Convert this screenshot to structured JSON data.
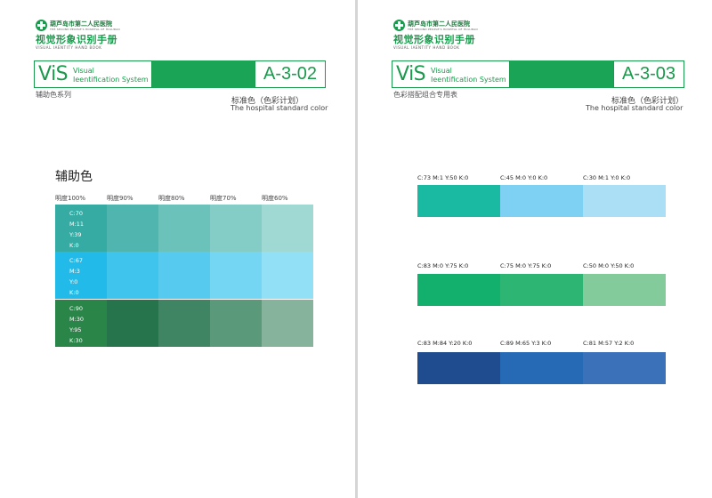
{
  "header": {
    "hospital_cn": "葫芦岛市第二人民医院",
    "hospital_en": "THE SECOND PEOPLE'S HOSPITAL OF HULUDAO",
    "manual_cn": "视觉形象识别手册",
    "manual_en": "VISUAL IAENTITY HAND BOOK",
    "vis_logo": "ViS",
    "vis_line1": "Visual",
    "vis_line2": "Ieentification System",
    "standard_cn": "标准色（色彩计划）",
    "standard_en": "The hospital standard color"
  },
  "left_page": {
    "code": "A-3-02",
    "section": "辅助色系列",
    "title": "辅助色",
    "brightness_labels": [
      "明度100%",
      "明度90%",
      "明度80%",
      "明度70%",
      "明度60%"
    ],
    "rows": [
      {
        "cmyk": [
          "C:70",
          "M:11",
          "Y:39",
          "K:0"
        ],
        "colors": [
          "#35aba3",
          "#4fb5ae",
          "#6ac2bb",
          "#84ccc6",
          "#a0d8d3"
        ]
      },
      {
        "cmyk": [
          "C:67",
          "M:3",
          "Y:0",
          "K:0"
        ],
        "colors": [
          "#22bbe9",
          "#3ec4ed",
          "#57cbef",
          "#74d6f2",
          "#92e0f5"
        ]
      },
      {
        "cmyk": [
          "C:90",
          "M:30",
          "Y:95",
          "K:30"
        ],
        "colors": [
          "#2a8548",
          "#26744c",
          "#3f8563",
          "#5a9a7b",
          "#85b39c"
        ]
      }
    ]
  },
  "right_page": {
    "code": "A-3-03",
    "section": "色彩搭配组合专用表",
    "groups": [
      {
        "labels": [
          "C:73 M:1 Y:50 K:0",
          "C:45 M:0 Y:0 K:0",
          "C:30 M:1 Y:0 K:0"
        ],
        "colors": [
          "#1abaa2",
          "#7fd1f3",
          "#aadff6"
        ]
      },
      {
        "labels": [
          "C:83 M:0 Y:75 K:0",
          "C:75 M:0 Y:75 K:0",
          "C:50 M:0 Y:50 K:0"
        ],
        "colors": [
          "#12b06c",
          "#2db673",
          "#84cb9b"
        ]
      },
      {
        "labels": [
          "C:83 M:84 Y:20 K:0",
          "C:89 M:65 Y:3 K:0",
          "C:81 M:57 Y:2 K:0"
        ],
        "colors": [
          "#1f4c8f",
          "#2669b5",
          "#3a71b9"
        ]
      }
    ]
  }
}
